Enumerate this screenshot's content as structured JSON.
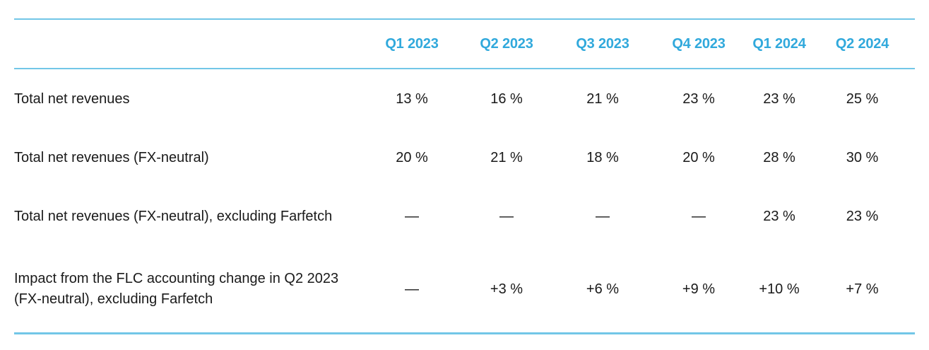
{
  "table": {
    "accent_color": "#31a9dc",
    "rule_color": "#72c6e7",
    "text_color": "#1a1a1a",
    "columns": [
      "Q1 2023",
      "Q2 2023",
      "Q3 2023",
      "Q4 2023",
      "Q1 2024",
      "Q2 2024"
    ],
    "rows": [
      {
        "label": "Total net revenues",
        "values": [
          "13 %",
          "16 %",
          "21 %",
          "23 %",
          "23 %",
          "25 %"
        ]
      },
      {
        "label": "Total net revenues (FX-neutral)",
        "values": [
          "20 %",
          "21 %",
          "18 %",
          "20 %",
          "28 %",
          "30 %"
        ]
      },
      {
        "label": "Total net revenues (FX-neutral), excluding Farfetch",
        "values": [
          "—",
          "—",
          "—",
          "—",
          "23 %",
          "23 %"
        ]
      },
      {
        "label": "Impact from the FLC accounting change in Q2 2023 (FX-neutral), excluding Farfetch",
        "values": [
          "—",
          "+3 %",
          "+6 %",
          "+9 %",
          "+10 %",
          "+7 %"
        ]
      }
    ]
  }
}
